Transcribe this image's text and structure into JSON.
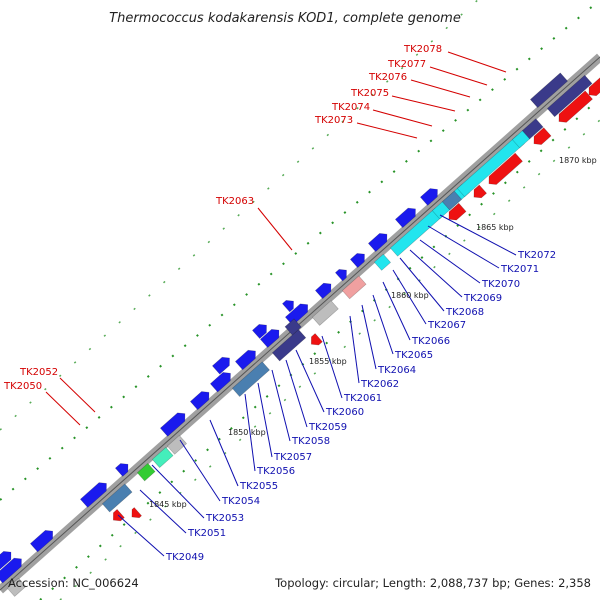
{
  "title": "Thermococcus kodakarensis KOD1, complete genome",
  "footer": {
    "accession": "Accession: NC_006624",
    "summary": "Topology: circular; Length: 2,088,737 bp; Genes: 2,358"
  },
  "colors": {
    "forward": "#1a1aee",
    "reverse": "#ee1111",
    "dark": "#3a3a8a",
    "cyan": "#22e5ee",
    "grey": "#bdbdbd",
    "backbone": "#a0a0a0",
    "tick": "#118811"
  },
  "kbp_labels": [
    "1845 kbp",
    "1850 kbp",
    "1855 kbp",
    "1860 kbp",
    "1865 kbp",
    "1870 kbp"
  ],
  "red_labels": [
    "TK2078",
    "TK2077",
    "TK2076",
    "TK2075",
    "TK2074",
    "TK2073",
    "TK2063",
    "TK2052",
    "TK2050"
  ],
  "blue_labels": [
    "TK2072",
    "TK2071",
    "TK2070",
    "TK2069",
    "TK2068",
    "TK2067",
    "TK2066",
    "TK2065",
    "TK2064",
    "TK2062",
    "TK2061",
    "TK2060",
    "TK2059",
    "TK2058",
    "TK2057",
    "TK2056",
    "TK2055",
    "TK2054",
    "TK2053",
    "TK2051",
    "TK2049"
  ]
}
